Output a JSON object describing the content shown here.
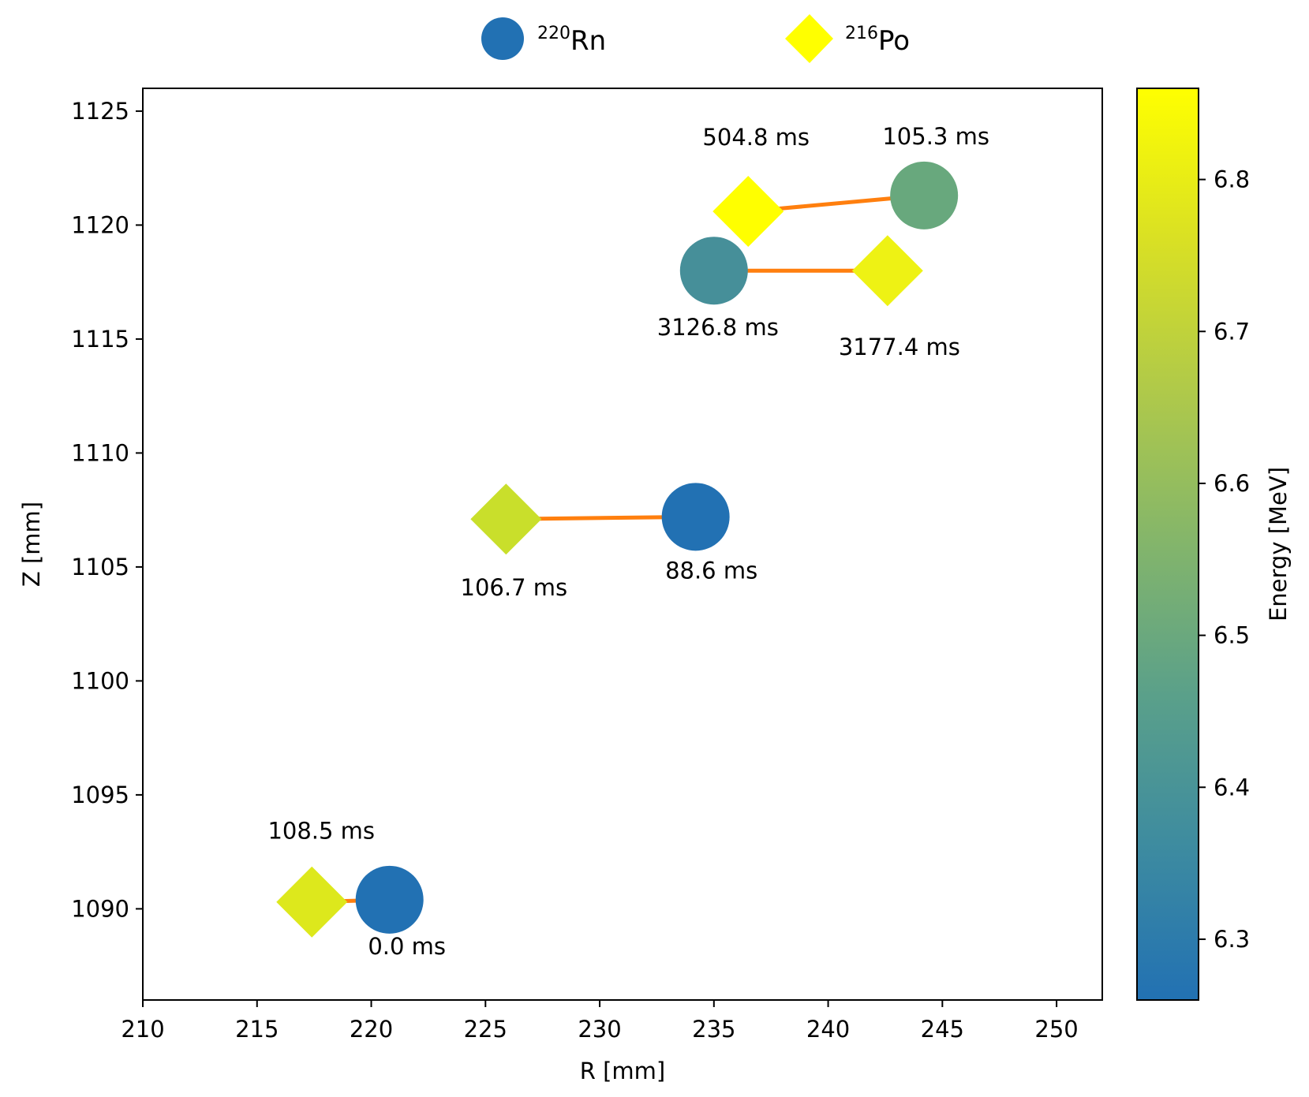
{
  "chart_data": {
    "type": "scatter",
    "xlabel": "R [mm]",
    "ylabel": "Z [mm]",
    "xlim": [
      210,
      252
    ],
    "ylim": [
      1086,
      1126
    ],
    "xticks": [
      210,
      215,
      220,
      225,
      230,
      235,
      240,
      245,
      250
    ],
    "yticks": [
      1090,
      1095,
      1100,
      1105,
      1110,
      1115,
      1120,
      1125
    ],
    "grid": false,
    "legend": {
      "position": "top-center",
      "entries": [
        {
          "marker": "circle",
          "sup": "220",
          "label": "Rn",
          "color": "#2271b3"
        },
        {
          "marker": "diamond",
          "sup": "216",
          "label": "Po",
          "color": "#ffff00"
        }
      ]
    },
    "colorbar": {
      "label": "Energy [MeV]",
      "range": [
        6.26,
        6.86
      ],
      "ticks": [
        "6.3",
        "6.4",
        "6.5",
        "6.6",
        "6.7",
        "6.8"
      ],
      "colormap_stops": [
        "#2271b3",
        "#3d8ba0",
        "#5aa08a",
        "#83b56b",
        "#afc94a",
        "#d9e024",
        "#ffff00"
      ]
    },
    "series": [
      {
        "name": "220Rn",
        "marker": "circle",
        "points": [
          {
            "r": 220.8,
            "z": 1090.4,
            "energy": 6.29,
            "label": "0.0 ms",
            "color": "#2271b3"
          },
          {
            "r": 234.2,
            "z": 1107.2,
            "energy": 6.29,
            "label": "88.6 ms",
            "color": "#2271b3"
          },
          {
            "r": 235.0,
            "z": 1118.0,
            "energy": 6.38,
            "label": "3126.8 ms",
            "color": "#468f99"
          },
          {
            "r": 244.2,
            "z": 1121.3,
            "energy": 6.47,
            "label": "105.3 ms",
            "color": "#68a87d"
          }
        ]
      },
      {
        "name": "216Po",
        "marker": "diamond",
        "points": [
          {
            "r": 217.4,
            "z": 1090.3,
            "energy": 6.76,
            "label": "108.5 ms",
            "color": "#dde81c"
          },
          {
            "r": 225.9,
            "z": 1107.1,
            "energy": 6.71,
            "label": "106.7 ms",
            "color": "#c9df2b"
          },
          {
            "r": 242.6,
            "z": 1118.0,
            "energy": 6.8,
            "label": "3177.4 ms",
            "color": "#eef214"
          },
          {
            "r": 236.5,
            "z": 1120.6,
            "energy": 6.86,
            "label": "504.8 ms",
            "color": "#ffff00"
          }
        ]
      }
    ],
    "arrows": [
      {
        "from": [
          220.8,
          1090.4
        ],
        "to": [
          217.4,
          1090.3
        ],
        "color": "#ff7f0e"
      },
      {
        "from": [
          234.2,
          1107.2
        ],
        "to": [
          225.9,
          1107.1
        ],
        "color": "#ff7f0e"
      },
      {
        "from": [
          235.0,
          1118.0
        ],
        "to": [
          242.6,
          1118.0
        ],
        "color": "#ff7f0e"
      },
      {
        "from": [
          244.2,
          1121.3
        ],
        "to": [
          236.5,
          1120.6
        ],
        "color": "#ff7f0e"
      }
    ]
  }
}
